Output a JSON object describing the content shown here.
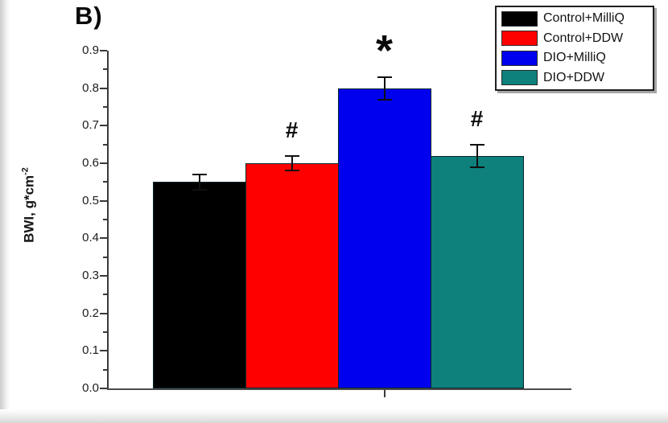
{
  "panel_label": "B)",
  "axis": {
    "y_label_main": "BWI, g*cm",
    "y_label_exp": "-2",
    "y_tick_labels": [
      "0.0",
      "0.1",
      "0.2",
      "0.3",
      "0.4",
      "0.5",
      "0.6",
      "0.7",
      "0.8",
      "0.9"
    ]
  },
  "legend": {
    "items": [
      {
        "label": "Control+MilliQ",
        "color": "#000000"
      },
      {
        "label": "Control+DDW",
        "color": "#fe0000"
      },
      {
        "label": "DIO+MilliQ",
        "color": "#0000ee"
      },
      {
        "label": "DIO+DDW",
        "color": "#0e817c"
      }
    ]
  },
  "chart_data": {
    "type": "bar",
    "title": "",
    "xlabel": "",
    "ylabel": "BWI, g*cm^-2",
    "ylim": [
      0,
      0.9
    ],
    "ytick_step": 0.1,
    "grid": false,
    "legend_position": "top-right",
    "categories": [
      "Control+MilliQ",
      "Control+DDW",
      "DIO+MilliQ",
      "DIO+DDW"
    ],
    "values": [
      0.55,
      0.6,
      0.8,
      0.62
    ],
    "errors": [
      0.02,
      0.02,
      0.03,
      0.03
    ],
    "annotations": [
      "",
      "#",
      "*",
      "#"
    ],
    "colors": [
      "#000000",
      "#fe0000",
      "#0000ee",
      "#0e817c"
    ]
  }
}
